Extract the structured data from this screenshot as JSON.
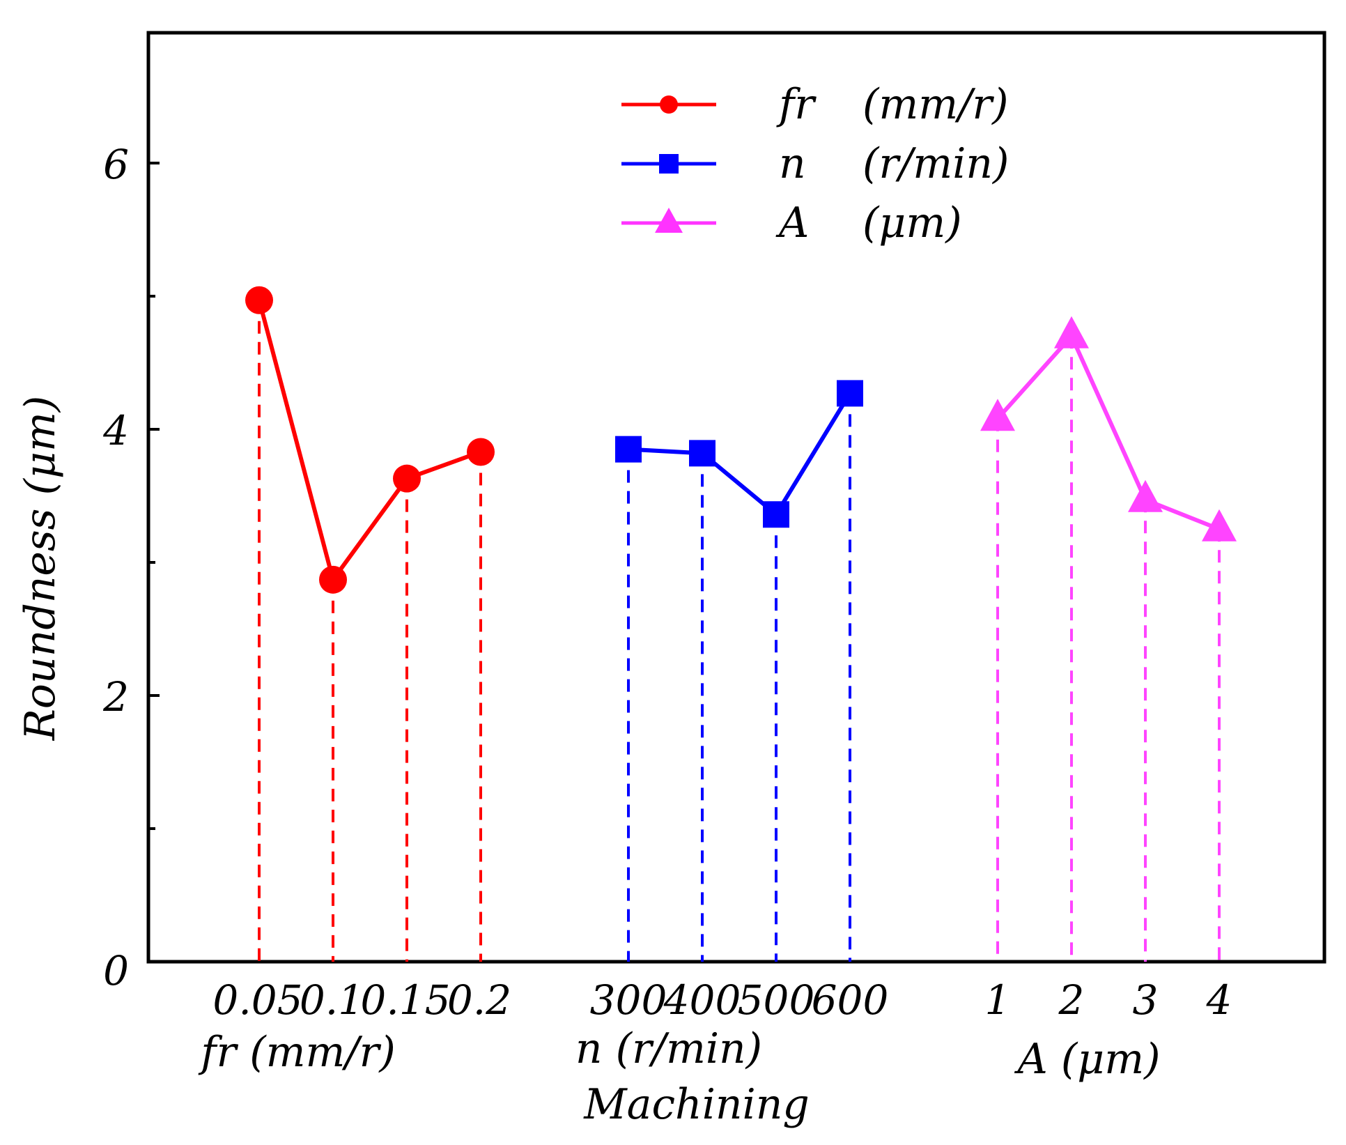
{
  "chart_data": {
    "type": "line",
    "title": "",
    "ylabel": "Roundness (μm)",
    "xlabel": "Machining",
    "ylim": [
      0,
      7
    ],
    "yticks_labeled": [
      "0",
      "2",
      "4",
      "6"
    ],
    "yticks_minor": [
      1,
      3,
      5
    ],
    "grid": false,
    "legend_position": "top-center",
    "legend": [
      {
        "name": "fr",
        "unit": "(mm/r)",
        "marker": "circle",
        "color": "#ff0000"
      },
      {
        "name": "n",
        "unit": "(r/min)",
        "marker": "square",
        "color": "#0000ff"
      },
      {
        "name": "A",
        "unit": "(μm)",
        "marker": "triangle",
        "color": "#ff33ff"
      }
    ],
    "series": [
      {
        "name": "fr",
        "group_label": "fr (mm/r)",
        "categories": [
          "0.05",
          "0.1",
          "0.15",
          "0.2"
        ],
        "values": [
          4.97,
          2.87,
          3.63,
          3.83
        ],
        "color": "#ff0000",
        "marker": "circle"
      },
      {
        "name": "n",
        "group_label": "n (r/min)",
        "categories": [
          "300",
          "400",
          "500",
          "600"
        ],
        "values": [
          3.85,
          3.82,
          3.36,
          4.27
        ],
        "color": "#0000ff",
        "marker": "square"
      },
      {
        "name": "A",
        "group_label": "A (μm)",
        "categories": [
          "1",
          "2",
          "3",
          "4"
        ],
        "values": [
          4.08,
          4.7,
          3.47,
          3.25
        ],
        "color": "#ff44ff",
        "marker": "triangle"
      }
    ]
  }
}
